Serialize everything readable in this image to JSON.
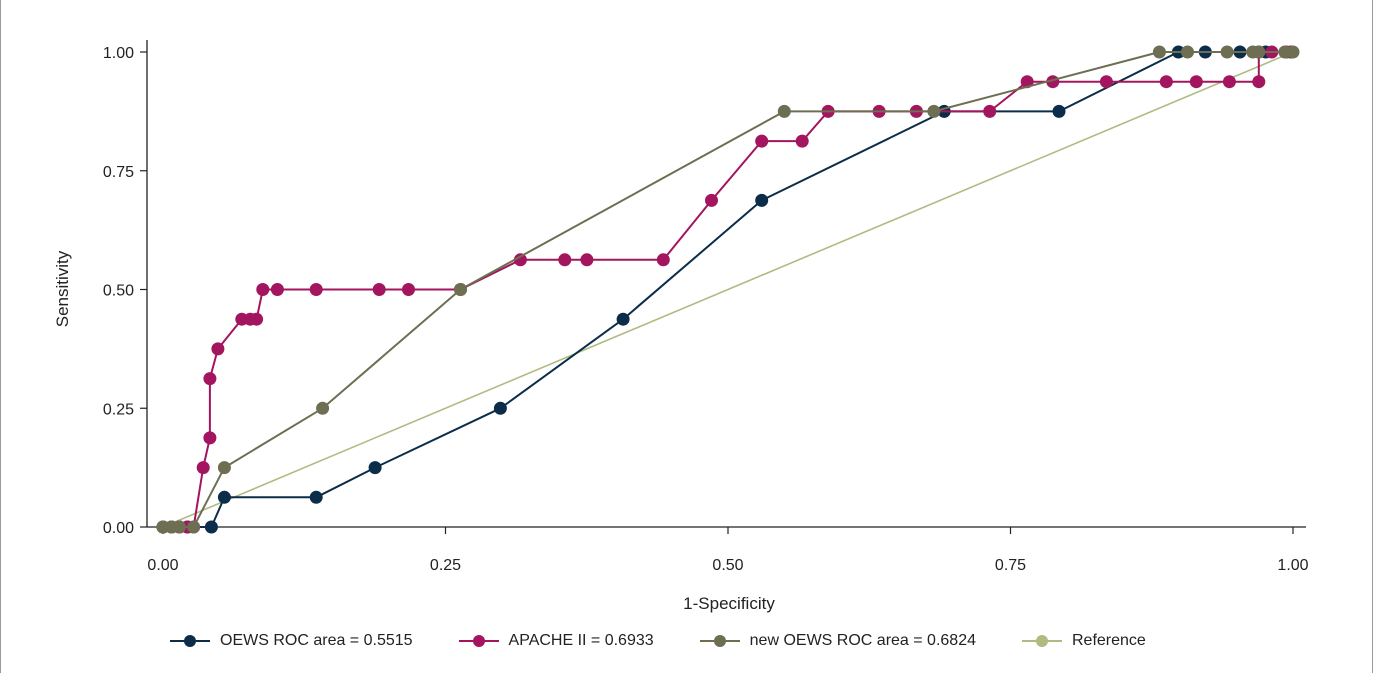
{
  "chart_data": {
    "type": "line",
    "xlabel": "1-Specificity",
    "ylabel": "Sensitivity",
    "xlim": [
      0,
      1
    ],
    "ylim": [
      0,
      1
    ],
    "x_ticks": [
      "0.00",
      "0.25",
      "0.50",
      "0.75",
      "1.00"
    ],
    "y_ticks": [
      "0.00",
      "0.25",
      "0.50",
      "0.75",
      "1.00"
    ],
    "grid": false,
    "legend_position": "bottom",
    "series": [
      {
        "name": "OEWS ROC area = 0.5515",
        "color": "#0b2d4a",
        "markers": true,
        "points": [
          [
            0,
            0
          ],
          [
            0.0075,
            0
          ],
          [
            0.0145,
            0
          ],
          [
            0.0217,
            0
          ],
          [
            0.0428,
            0
          ],
          [
            0.0543,
            0.0625
          ],
          [
            0.1356,
            0.0625
          ],
          [
            0.1877,
            0.125
          ],
          [
            0.2986,
            0.25
          ],
          [
            0.4072,
            0.4375
          ],
          [
            0.5298,
            0.6875
          ],
          [
            0.6913,
            0.875
          ],
          [
            0.7929,
            0.875
          ],
          [
            0.8986,
            1
          ],
          [
            0.9224,
            1
          ],
          [
            0.9531,
            1
          ],
          [
            0.9758,
            1
          ],
          [
            0.9983,
            1
          ]
        ]
      },
      {
        "name": "APACHE II = 0.6933",
        "color": "#a3155f",
        "markers": true,
        "points": [
          [
            0,
            0
          ],
          [
            0.0075,
            0
          ],
          [
            0.0145,
            0
          ],
          [
            0.0217,
            0
          ],
          [
            0.0271,
            0
          ],
          [
            0.0356,
            0.125
          ],
          [
            0.0415,
            0.1875
          ],
          [
            0.0415,
            0.3125
          ],
          [
            0.0486,
            0.375
          ],
          [
            0.0697,
            0.4375
          ],
          [
            0.0772,
            0.4375
          ],
          [
            0.0828,
            0.4375
          ],
          [
            0.0883,
            0.5
          ],
          [
            0.1012,
            0.5
          ],
          [
            0.1356,
            0.5
          ],
          [
            0.1913,
            0.5
          ],
          [
            0.2173,
            0.5
          ],
          [
            0.2633,
            0.5
          ],
          [
            0.3163,
            0.5625
          ],
          [
            0.3556,
            0.5625
          ],
          [
            0.3751,
            0.5625
          ],
          [
            0.4427,
            0.5625
          ],
          [
            0.4854,
            0.6875
          ],
          [
            0.5298,
            0.8125
          ],
          [
            0.5657,
            0.8125
          ],
          [
            0.5886,
            0.875
          ],
          [
            0.6337,
            0.875
          ],
          [
            0.6667,
            0.875
          ],
          [
            0.7316,
            0.875
          ],
          [
            0.7648,
            0.9375
          ],
          [
            0.7874,
            0.9375
          ],
          [
            0.8349,
            0.9375
          ],
          [
            0.8879,
            0.9375
          ],
          [
            0.9144,
            0.9375
          ],
          [
            0.9437,
            0.9375
          ],
          [
            0.9697,
            0.9375
          ],
          [
            0.9697,
            1
          ],
          [
            0.9812,
            1
          ],
          [
            0.9943,
            1
          ]
        ]
      },
      {
        "name": "new OEWS ROC area = 0.6824",
        "color": "#6e6e52",
        "markers": true,
        "points": [
          [
            0,
            0
          ],
          [
            0.0075,
            0
          ],
          [
            0.0145,
            0
          ],
          [
            0.0271,
            0
          ],
          [
            0.0543,
            0.125
          ],
          [
            0.1412,
            0.25
          ],
          [
            0.2633,
            0.5
          ],
          [
            0.5498,
            0.875
          ],
          [
            0.6822,
            0.875
          ],
          [
            0.8818,
            1
          ],
          [
            0.9066,
            1
          ],
          [
            0.9417,
            1
          ],
          [
            0.9644,
            1
          ],
          [
            0.9697,
            1
          ],
          [
            0.9928,
            1
          ],
          [
            1,
            1
          ]
        ]
      },
      {
        "name": "Reference",
        "color": "#b0bb82",
        "markers": false,
        "points": [
          [
            0,
            0
          ],
          [
            1,
            1
          ]
        ]
      }
    ]
  }
}
